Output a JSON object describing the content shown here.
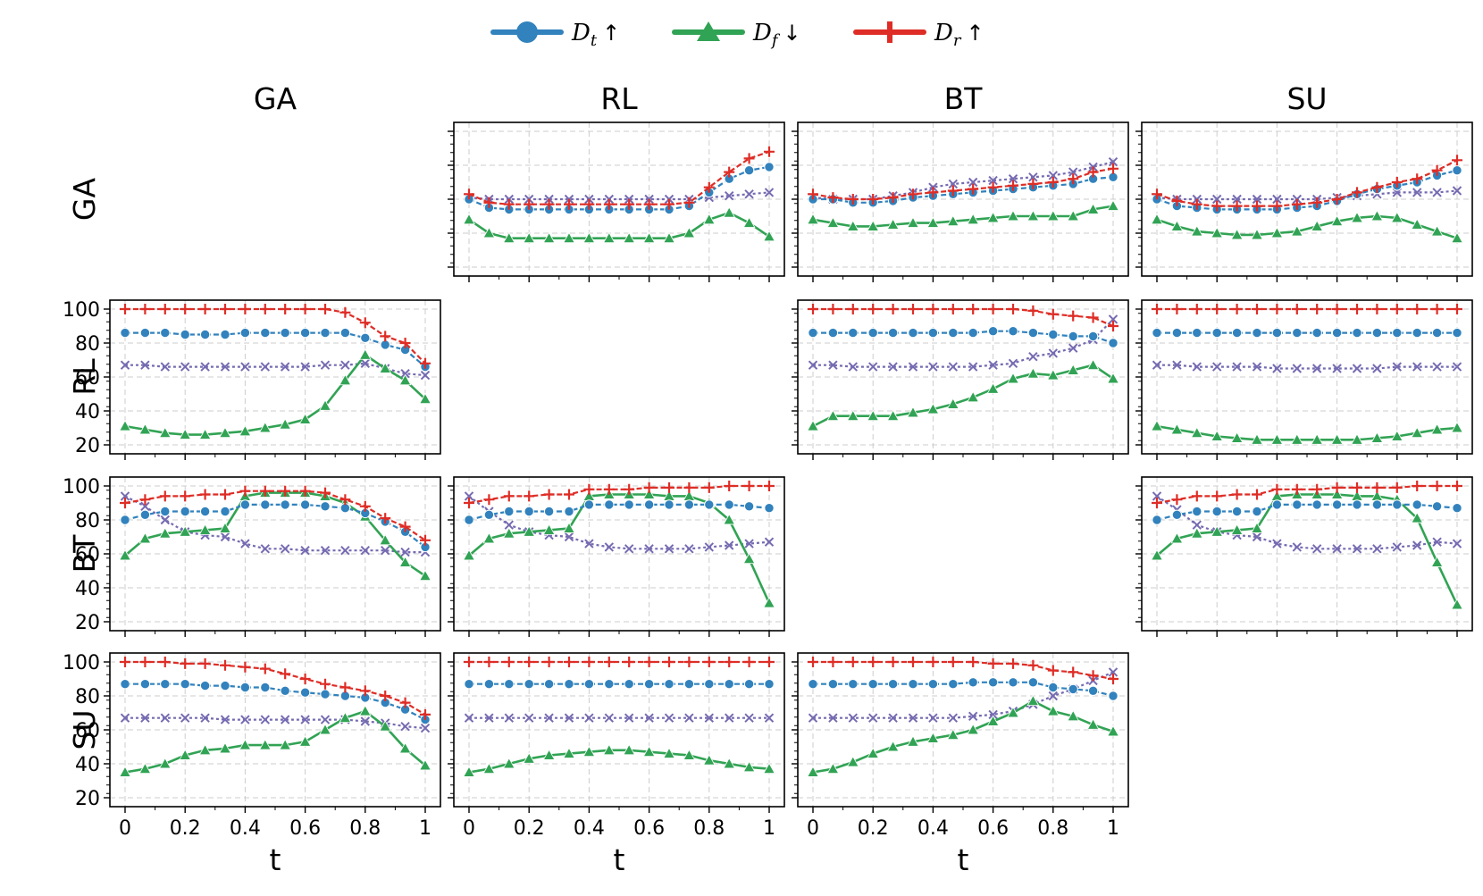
{
  "legend": [
    {
      "main": "D",
      "sub": "t",
      "arrow": "↑",
      "color": "#3182bd",
      "marker": "circle"
    },
    {
      "main": "D",
      "sub": "f",
      "arrow": "↓",
      "color": "#31a354",
      "marker": "triangle"
    },
    {
      "main": "D",
      "sub": "r",
      "arrow": "↑",
      "color": "#de2d26",
      "marker": "plus"
    }
  ],
  "colors": {
    "Dt": "#3182bd",
    "Df": "#31a354",
    "Dr": "#de2d26",
    "other": "#756bb1"
  },
  "col_labels": [
    "GA",
    "RL",
    "BT",
    "SU"
  ],
  "row_labels": [
    "GA",
    "RL",
    "BT",
    "SU"
  ],
  "x_label": "t",
  "chart_data": {
    "type": "line",
    "grid": true,
    "legend_placement": "top-center",
    "x": [
      0,
      0.0667,
      0.1333,
      0.2,
      0.2667,
      0.3333,
      0.4,
      0.4667,
      0.5333,
      0.6,
      0.6667,
      0.7333,
      0.8,
      0.8667,
      0.9333,
      1
    ],
    "x_ticks": [
      0,
      0.2,
      0.4,
      0.6,
      0.8,
      1
    ],
    "x_tick_labels": [
      "0",
      "0.2",
      "0.4",
      "0.6",
      "0.8",
      "1"
    ],
    "ylim": [
      20,
      100
    ],
    "y_ticks": [
      20,
      40,
      60,
      80,
      100
    ],
    "series_styles": {
      "Dt": {
        "color": "#3182bd",
        "marker": "circle"
      },
      "Df": {
        "color": "#31a354",
        "marker": "triangle"
      },
      "Dr": {
        "color": "#de2d26",
        "marker": "plus"
      },
      "other": {
        "color": "#756bb1",
        "marker": "x"
      }
    },
    "panels": [
      {
        "row": "GA",
        "col": "RL",
        "y_axis_labels": false,
        "x_axis_labels": false,
        "Dt": [
          60,
          55,
          54,
          54,
          54,
          54,
          54,
          54,
          54,
          54,
          54,
          56,
          64,
          72,
          77,
          79
        ],
        "Df": [
          48,
          40,
          37,
          37,
          37,
          37,
          37,
          37,
          37,
          37,
          37,
          40,
          48,
          52,
          46,
          38
        ],
        "Dr": [
          63,
          58,
          57,
          57,
          57,
          57,
          57,
          57,
          57,
          57,
          57,
          58,
          67,
          76,
          84,
          88
        ],
        "other": [
          61,
          60,
          60,
          60,
          60,
          60,
          60,
          60,
          60,
          60,
          60,
          60,
          61,
          62,
          63,
          64
        ]
      },
      {
        "row": "GA",
        "col": "BT",
        "y_axis_labels": false,
        "x_axis_labels": false,
        "Dt": [
          60,
          60,
          58,
          58,
          59,
          61,
          62,
          63,
          64,
          65,
          66,
          67,
          68,
          69,
          72,
          73
        ],
        "Df": [
          48,
          46,
          44,
          44,
          45,
          46,
          46,
          47,
          48,
          49,
          50,
          50,
          50,
          50,
          54,
          56
        ],
        "Dr": [
          63,
          61,
          60,
          60,
          61,
          63,
          64,
          65,
          66,
          67,
          68,
          69,
          70,
          72,
          76,
          78
        ],
        "other": [
          61,
          60,
          60,
          60,
          62,
          64,
          67,
          69,
          70,
          71,
          72,
          73,
          74,
          76,
          79,
          82
        ]
      },
      {
        "row": "GA",
        "col": "SU",
        "y_axis_labels": false,
        "x_axis_labels": false,
        "Dt": [
          60,
          56,
          55,
          54,
          54,
          54,
          54,
          55,
          56,
          59,
          63,
          66,
          68,
          70,
          74,
          77
        ],
        "Df": [
          48,
          44,
          41,
          40,
          39,
          39,
          40,
          41,
          44,
          47,
          49,
          50,
          49,
          45,
          41,
          37
        ],
        "Dr": [
          63,
          59,
          57,
          56,
          56,
          56,
          56,
          57,
          58,
          60,
          64,
          67,
          70,
          72,
          77,
          83
        ],
        "other": [
          61,
          60,
          60,
          60,
          60,
          60,
          60,
          60,
          60,
          61,
          62,
          63,
          64,
          64,
          64,
          65
        ]
      },
      {
        "row": "RL",
        "col": "GA",
        "y_axis_labels": true,
        "x_axis_labels": false,
        "Dt": [
          86,
          86,
          86,
          85,
          85,
          85,
          86,
          86,
          86,
          86,
          86,
          86,
          83,
          79,
          76,
          66
        ],
        "Df": [
          31,
          29,
          27,
          26,
          26,
          27,
          28,
          30,
          32,
          35,
          43,
          58,
          73,
          65,
          58,
          47
        ],
        "Dr": [
          100,
          100,
          100,
          100,
          100,
          100,
          100,
          100,
          100,
          100,
          100,
          98,
          92,
          84,
          80,
          68
        ],
        "other": [
          67,
          67,
          66,
          66,
          66,
          66,
          66,
          66,
          66,
          66,
          67,
          67,
          68,
          65,
          62,
          61
        ]
      },
      {
        "row": "RL",
        "col": "BT",
        "y_axis_labels": false,
        "x_axis_labels": false,
        "Dt": [
          86,
          86,
          86,
          86,
          86,
          86,
          86,
          86,
          86,
          87,
          87,
          86,
          85,
          84,
          84,
          80
        ],
        "Df": [
          31,
          37,
          37,
          37,
          37,
          39,
          41,
          44,
          48,
          53,
          59,
          62,
          61,
          64,
          67,
          59
        ],
        "Dr": [
          100,
          100,
          100,
          100,
          100,
          100,
          100,
          100,
          100,
          100,
          100,
          99,
          97,
          96,
          95,
          90
        ],
        "other": [
          67,
          67,
          66,
          66,
          66,
          66,
          66,
          66,
          66,
          67,
          68,
          72,
          74,
          77,
          82,
          94
        ]
      },
      {
        "row": "RL",
        "col": "SU",
        "y_axis_labels": false,
        "x_axis_labels": false,
        "Dt": [
          86,
          86,
          86,
          86,
          86,
          86,
          86,
          86,
          86,
          86,
          86,
          86,
          86,
          86,
          86,
          86
        ],
        "Df": [
          31,
          29,
          27,
          25,
          24,
          23,
          23,
          23,
          23,
          23,
          23,
          24,
          25,
          27,
          29,
          30
        ],
        "Dr": [
          100,
          100,
          100,
          100,
          100,
          100,
          100,
          100,
          100,
          100,
          100,
          100,
          100,
          100,
          100,
          100
        ],
        "other": [
          67,
          67,
          66,
          66,
          66,
          66,
          65,
          65,
          65,
          65,
          65,
          65,
          66,
          66,
          66,
          66
        ]
      },
      {
        "row": "BT",
        "col": "GA",
        "y_axis_labels": true,
        "x_axis_labels": false,
        "Dt": [
          80,
          83,
          85,
          85,
          85,
          85,
          89,
          89,
          89,
          89,
          88,
          87,
          84,
          79,
          73,
          64
        ],
        "Df": [
          59,
          69,
          72,
          73,
          74,
          75,
          94,
          96,
          96,
          96,
          94,
          90,
          82,
          68,
          55,
          47
        ],
        "Dr": [
          90,
          92,
          94,
          94,
          95,
          95,
          97,
          97,
          97,
          97,
          96,
          92,
          88,
          81,
          76,
          68
        ],
        "other": [
          94,
          88,
          80,
          73,
          71,
          70,
          66,
          63,
          63,
          62,
          62,
          62,
          62,
          62,
          61,
          61
        ]
      },
      {
        "row": "BT",
        "col": "RL",
        "y_axis_labels": false,
        "x_axis_labels": false,
        "Dt": [
          80,
          83,
          85,
          85,
          85,
          85,
          89,
          89,
          89,
          89,
          89,
          89,
          89,
          89,
          88,
          87
        ],
        "Df": [
          59,
          69,
          72,
          73,
          74,
          75,
          94,
          95,
          95,
          95,
          94,
          94,
          90,
          80,
          57,
          31
        ],
        "Dr": [
          90,
          92,
          94,
          94,
          95,
          95,
          98,
          98,
          98,
          99,
          99,
          99,
          99,
          100,
          100,
          100
        ],
        "other": [
          94,
          85,
          77,
          73,
          71,
          70,
          66,
          64,
          63,
          63,
          63,
          63,
          64,
          65,
          66,
          67
        ]
      },
      {
        "row": "BT",
        "col": "SU",
        "y_axis_labels": false,
        "x_axis_labels": false,
        "Dt": [
          80,
          83,
          85,
          85,
          85,
          85,
          89,
          89,
          89,
          89,
          89,
          89,
          89,
          89,
          88,
          87
        ],
        "Df": [
          59,
          69,
          72,
          73,
          74,
          75,
          94,
          95,
          95,
          95,
          94,
          94,
          92,
          81,
          55,
          30
        ],
        "Dr": [
          90,
          92,
          94,
          94,
          95,
          95,
          98,
          98,
          98,
          99,
          99,
          99,
          99,
          100,
          100,
          100
        ],
        "other": [
          94,
          86,
          77,
          73,
          71,
          70,
          66,
          64,
          63,
          63,
          63,
          63,
          64,
          65,
          67,
          66
        ]
      },
      {
        "row": "SU",
        "col": "GA",
        "y_axis_labels": true,
        "x_axis_labels": true,
        "Dt": [
          87,
          87,
          87,
          87,
          86,
          86,
          85,
          85,
          83,
          82,
          81,
          80,
          79,
          76,
          72,
          66
        ],
        "Df": [
          35,
          37,
          40,
          45,
          48,
          49,
          51,
          51,
          51,
          53,
          60,
          67,
          71,
          62,
          49,
          39
        ],
        "Dr": [
          100,
          100,
          100,
          99,
          99,
          98,
          97,
          96,
          93,
          90,
          87,
          85,
          83,
          80,
          76,
          69
        ],
        "other": [
          67,
          67,
          67,
          67,
          67,
          66,
          66,
          66,
          66,
          66,
          66,
          66,
          65,
          64,
          62,
          61
        ]
      },
      {
        "row": "SU",
        "col": "RL",
        "y_axis_labels": false,
        "x_axis_labels": true,
        "Dt": [
          87,
          87,
          87,
          87,
          87,
          87,
          87,
          87,
          87,
          87,
          87,
          87,
          87,
          87,
          87,
          87
        ],
        "Df": [
          35,
          37,
          40,
          43,
          45,
          46,
          47,
          48,
          48,
          47,
          46,
          45,
          42,
          40,
          38,
          37
        ],
        "Dr": [
          100,
          100,
          100,
          100,
          100,
          100,
          100,
          100,
          100,
          100,
          100,
          100,
          100,
          100,
          100,
          100
        ],
        "other": [
          67,
          67,
          67,
          67,
          67,
          67,
          67,
          67,
          67,
          67,
          67,
          67,
          67,
          67,
          67,
          67
        ]
      },
      {
        "row": "SU",
        "col": "BT",
        "y_axis_labels": false,
        "x_axis_labels": true,
        "Dt": [
          87,
          87,
          87,
          87,
          87,
          87,
          87,
          87,
          88,
          88,
          88,
          88,
          85,
          84,
          83,
          80
        ],
        "Df": [
          35,
          37,
          41,
          46,
          50,
          53,
          55,
          57,
          60,
          65,
          70,
          77,
          71,
          68,
          63,
          59
        ],
        "Dr": [
          100,
          100,
          100,
          100,
          100,
          100,
          100,
          100,
          100,
          99,
          99,
          98,
          95,
          94,
          92,
          90
        ],
        "other": [
          67,
          67,
          67,
          67,
          67,
          67,
          67,
          67,
          68,
          69,
          71,
          75,
          80,
          84,
          89,
          94
        ]
      }
    ]
  }
}
